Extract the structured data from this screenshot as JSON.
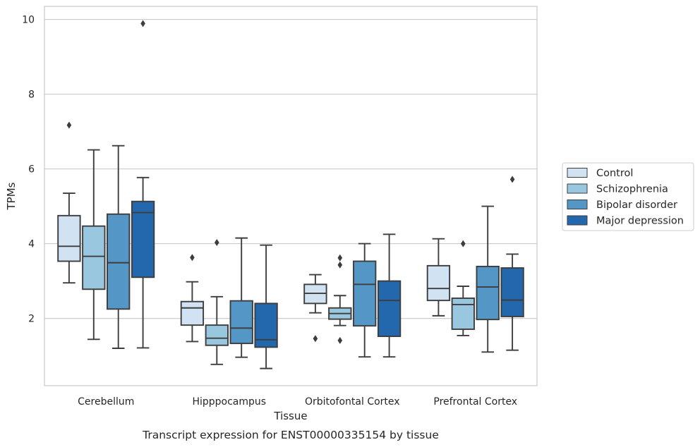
{
  "chart_data": {
    "type": "box",
    "title": "",
    "caption": "Transcript expression for ENST00000335154 by tissue",
    "xlabel": "Tissue",
    "ylabel": "TPMs",
    "ylim": [
      0.2,
      10.35
    ],
    "yticks": [
      2,
      4,
      6,
      8,
      10
    ],
    "grid": true,
    "legend_position": "right",
    "categories": [
      "Cerebellum",
      "Hipppocampus",
      "Orbitofontal Cortex",
      "Prefrontal Cortex"
    ],
    "series": [
      {
        "name": "Control",
        "color": "#d1e2f2",
        "boxes": [
          {
            "whislo": 2.95,
            "q1": 3.53,
            "med": 3.93,
            "q3": 4.75,
            "whishi": 5.35,
            "fliers": [
              7.17
            ]
          },
          {
            "whislo": 1.38,
            "q1": 1.82,
            "med": 2.28,
            "q3": 2.45,
            "whishi": 2.98,
            "fliers": [
              3.63
            ]
          },
          {
            "whislo": 2.15,
            "q1": 2.4,
            "med": 2.67,
            "q3": 2.91,
            "whishi": 3.17,
            "fliers": [
              1.46
            ]
          },
          {
            "whislo": 2.07,
            "q1": 2.48,
            "med": 2.8,
            "q3": 3.41,
            "whishi": 4.13,
            "fliers": []
          }
        ]
      },
      {
        "name": "Schizophrenia",
        "color": "#9ac7e0",
        "boxes": [
          {
            "whislo": 1.44,
            "q1": 2.78,
            "med": 3.66,
            "q3": 4.47,
            "whishi": 6.51,
            "fliers": []
          },
          {
            "whislo": 0.77,
            "q1": 1.28,
            "med": 1.47,
            "q3": 1.82,
            "whishi": 2.58,
            "fliers": [
              4.03
            ]
          },
          {
            "whislo": 1.81,
            "q1": 1.98,
            "med": 2.13,
            "q3": 2.28,
            "whishi": 2.61,
            "fliers": [
              1.41,
              3.43,
              3.62
            ]
          },
          {
            "whislo": 1.54,
            "q1": 1.71,
            "med": 2.37,
            "q3": 2.54,
            "whishi": 2.86,
            "fliers": [
              4.0
            ]
          }
        ]
      },
      {
        "name": "Bipolar disorder",
        "color": "#5497c6",
        "boxes": [
          {
            "whislo": 1.2,
            "q1": 2.25,
            "med": 3.49,
            "q3": 4.79,
            "whishi": 6.62,
            "fliers": []
          },
          {
            "whislo": 0.96,
            "q1": 1.33,
            "med": 1.74,
            "q3": 2.47,
            "whishi": 4.15,
            "fliers": []
          },
          {
            "whislo": 0.97,
            "q1": 1.8,
            "med": 2.91,
            "q3": 3.53,
            "whishi": 4.0,
            "fliers": []
          },
          {
            "whislo": 1.1,
            "q1": 1.97,
            "med": 2.84,
            "q3": 3.39,
            "whishi": 5.0,
            "fliers": []
          }
        ]
      },
      {
        "name": "Major depression",
        "color": "#2367ac",
        "boxes": [
          {
            "whislo": 1.21,
            "q1": 3.1,
            "med": 4.83,
            "q3": 5.13,
            "whishi": 5.77,
            "fliers": [
              9.89
            ]
          },
          {
            "whislo": 0.66,
            "q1": 1.23,
            "med": 1.43,
            "q3": 2.4,
            "whishi": 3.96,
            "fliers": []
          },
          {
            "whislo": 0.97,
            "q1": 1.52,
            "med": 2.48,
            "q3": 3.0,
            "whishi": 4.25,
            "fliers": []
          },
          {
            "whislo": 1.15,
            "q1": 2.05,
            "med": 2.49,
            "q3": 3.35,
            "whishi": 3.72,
            "fliers": [
              5.72
            ]
          }
        ]
      }
    ]
  }
}
